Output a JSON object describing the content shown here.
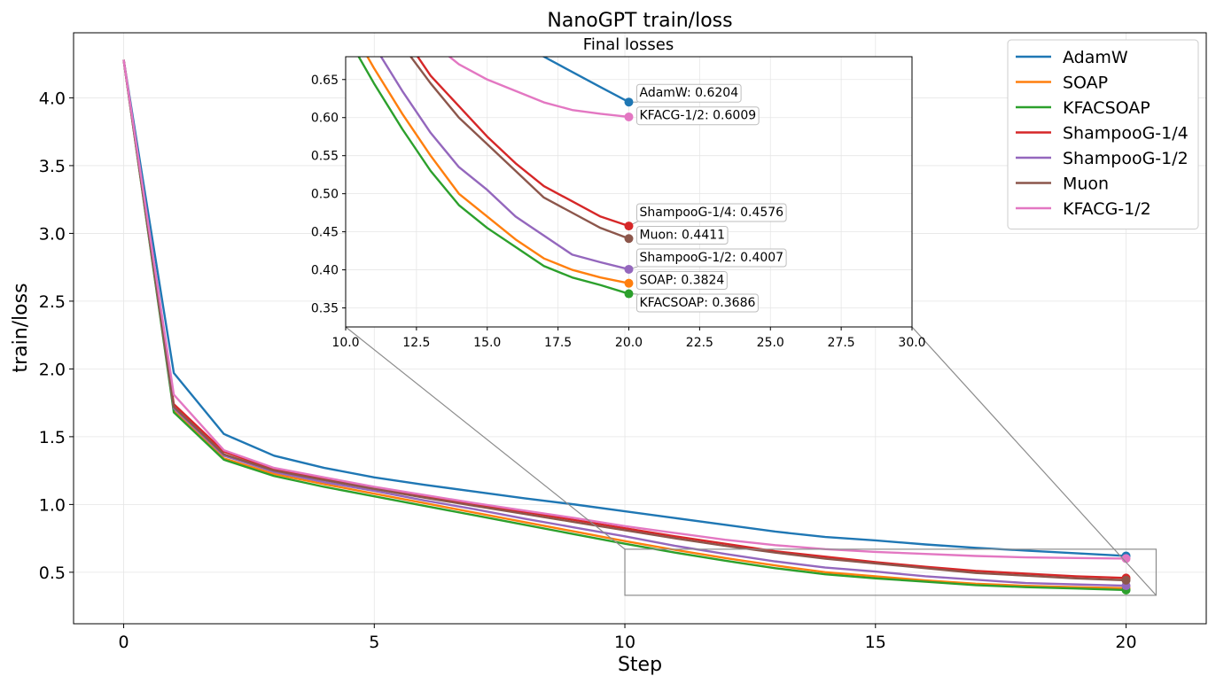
{
  "chart_data": [
    {
      "type": "line",
      "title": "NanoGPT train/loss",
      "xlabel": "Step",
      "ylabel": "train/loss",
      "xlim": [
        -1,
        21.6
      ],
      "ylim": [
        0.12,
        4.48
      ],
      "xticks": [
        0,
        5,
        10,
        15,
        20
      ],
      "yticks": [
        0.5,
        1.0,
        1.5,
        2.0,
        2.5,
        3.0,
        3.5,
        4.0
      ],
      "grid": true,
      "legend": "top-right",
      "x": [
        0,
        1,
        2,
        3,
        4,
        5,
        6,
        7,
        8,
        9,
        10,
        11,
        12,
        13,
        14,
        15,
        16,
        17,
        18,
        19,
        20
      ],
      "series": [
        {
          "name": "AdamW",
          "color": "#1f77b4",
          "values": [
            4.28,
            1.97,
            1.52,
            1.36,
            1.27,
            1.2,
            1.145,
            1.095,
            1.045,
            1.0,
            0.95,
            0.9,
            0.85,
            0.8,
            0.76,
            0.735,
            0.705,
            0.68,
            0.66,
            0.64,
            0.6204
          ]
        },
        {
          "name": "SOAP",
          "color": "#ff7f0e",
          "values": [
            4.28,
            1.69,
            1.34,
            1.225,
            1.15,
            1.08,
            1.01,
            0.94,
            0.87,
            0.8,
            0.73,
            0.665,
            0.605,
            0.55,
            0.5,
            0.47,
            0.44,
            0.415,
            0.4,
            0.39,
            0.3824
          ]
        },
        {
          "name": "KFACSOAP",
          "color": "#2ca02c",
          "values": [
            4.28,
            1.68,
            1.33,
            1.21,
            1.13,
            1.06,
            0.99,
            0.92,
            0.85,
            0.78,
            0.71,
            0.645,
            0.585,
            0.53,
            0.485,
            0.455,
            0.43,
            0.405,
            0.39,
            0.38,
            0.3686
          ]
        },
        {
          "name": "ShampooG-1/4",
          "color": "#d62728",
          "values": [
            4.28,
            1.74,
            1.39,
            1.26,
            1.19,
            1.12,
            1.06,
            1.0,
            0.945,
            0.885,
            0.825,
            0.765,
            0.71,
            0.655,
            0.615,
            0.575,
            0.54,
            0.51,
            0.49,
            0.47,
            0.4576
          ]
        },
        {
          "name": "ShampooG-1/2",
          "color": "#9467bd",
          "values": [
            4.28,
            1.71,
            1.36,
            1.24,
            1.165,
            1.1,
            1.03,
            0.965,
            0.895,
            0.83,
            0.765,
            0.695,
            0.635,
            0.58,
            0.535,
            0.505,
            0.47,
            0.445,
            0.42,
            0.41,
            0.4007
          ]
        },
        {
          "name": "Muon",
          "color": "#8c564b",
          "values": [
            4.28,
            1.72,
            1.37,
            1.25,
            1.18,
            1.115,
            1.05,
            0.99,
            0.93,
            0.87,
            0.81,
            0.75,
            0.695,
            0.645,
            0.6,
            0.565,
            0.53,
            0.495,
            0.475,
            0.455,
            0.4411
          ]
        },
        {
          "name": "KFACG-1/2",
          "color": "#e377c2",
          "values": [
            4.28,
            1.81,
            1.4,
            1.27,
            1.2,
            1.13,
            1.07,
            1.01,
            0.955,
            0.9,
            0.84,
            0.79,
            0.74,
            0.7,
            0.67,
            0.65,
            0.635,
            0.62,
            0.61,
            0.605,
            0.6009
          ]
        }
      ],
      "zoom_region": {
        "x": [
          10,
          20.6
        ],
        "y": [
          0.33,
          0.67
        ]
      }
    },
    {
      "type": "line",
      "title": "Final losses",
      "xlim": [
        10.0,
        30.0
      ],
      "ylim": [
        0.325,
        0.68
      ],
      "xticks": [
        10.0,
        12.5,
        15.0,
        17.5,
        20.0,
        22.5,
        25.0,
        27.5,
        30.0
      ],
      "yticks": [
        0.35,
        0.4,
        0.45,
        0.5,
        0.55,
        0.6,
        0.65
      ],
      "grid": true,
      "annotations": [
        {
          "series": "AdamW",
          "label": "AdamW: 0.6204",
          "x": 20,
          "y": 0.6204
        },
        {
          "series": "KFACG-1/2",
          "label": "KFACG-1/2: 0.6009",
          "x": 20,
          "y": 0.6009
        },
        {
          "series": "ShampooG-1/4",
          "label": "ShampooG-1/4: 0.4576",
          "x": 20,
          "y": 0.4576
        },
        {
          "series": "Muon",
          "label": "Muon: 0.4411",
          "x": 20,
          "y": 0.4411
        },
        {
          "series": "ShampooG-1/2",
          "label": "ShampooG-1/2: 0.4007",
          "x": 20,
          "y": 0.4007
        },
        {
          "series": "SOAP",
          "label": "SOAP: 0.3824",
          "x": 20,
          "y": 0.3824
        },
        {
          "series": "KFACSOAP",
          "label": "KFACSOAP: 0.3686",
          "x": 20,
          "y": 0.3686
        }
      ]
    }
  ]
}
